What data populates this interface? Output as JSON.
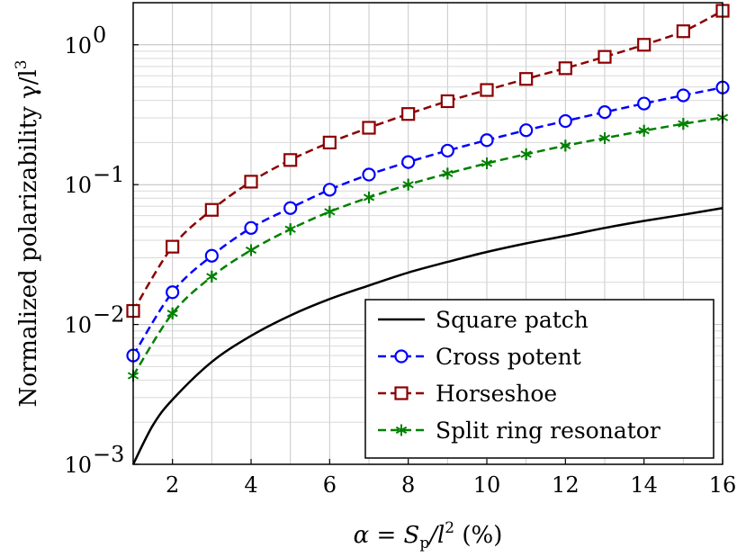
{
  "chart_data": {
    "type": "line",
    "xlabel": "α = S",
    "xlabel_sub": "p",
    "xlabel_rest": "/l",
    "xlabel_sup": "2",
    "xlabel_unit": " (%)",
    "ylabel": "Normalized polarizability γ/l",
    "ylabel_sup": "3",
    "xlim": [
      1,
      16
    ],
    "ylim": [
      0.001,
      2.0
    ],
    "y_scale": "log",
    "grid": true,
    "legend_position": "bottom-right",
    "x_ticks": [
      2,
      4,
      6,
      8,
      10,
      12,
      14,
      16
    ],
    "x_tick_labels": [
      "2",
      "4",
      "6",
      "8",
      "10",
      "12",
      "14",
      "16"
    ],
    "y_ticks": [
      0.001,
      0.01,
      0.1,
      1
    ],
    "y_tick_labels": [
      {
        "base": "10",
        "exp": "−3"
      },
      {
        "base": "10",
        "exp": "−2"
      },
      {
        "base": "10",
        "exp": "−1"
      },
      {
        "base": "10",
        "exp": "0"
      }
    ],
    "series": [
      {
        "name": "Square patch",
        "color": "#000000",
        "style": "solid",
        "marker": "none",
        "x": [
          1,
          1.5,
          2,
          3,
          4,
          5,
          6,
          7,
          8,
          9,
          10,
          11,
          12,
          13,
          14,
          15,
          16
        ],
        "y": [
          0.001,
          0.0019,
          0.0029,
          0.0054,
          0.0083,
          0.0116,
          0.0152,
          0.019,
          0.0235,
          0.028,
          0.033,
          0.038,
          0.043,
          0.049,
          0.055,
          0.061,
          0.068
        ]
      },
      {
        "name": "Cross potent",
        "color": "#0000ff",
        "style": "dashed",
        "marker": "circle",
        "x": [
          1,
          2,
          3,
          4,
          5,
          6,
          7,
          8,
          9,
          10,
          11,
          12,
          13,
          14,
          15,
          16
        ],
        "y": [
          0.006,
          0.017,
          0.031,
          0.049,
          0.068,
          0.092,
          0.118,
          0.145,
          0.175,
          0.208,
          0.245,
          0.285,
          0.33,
          0.38,
          0.435,
          0.495
        ]
      },
      {
        "name": "Horseshoe",
        "color": "#8b0000",
        "style": "dashed",
        "marker": "square",
        "x": [
          1,
          2,
          3,
          4,
          5,
          6,
          7,
          8,
          9,
          10,
          11,
          12,
          13,
          14,
          15,
          16
        ],
        "y": [
          0.0125,
          0.036,
          0.066,
          0.105,
          0.15,
          0.2,
          0.255,
          0.32,
          0.395,
          0.475,
          0.57,
          0.68,
          0.82,
          1.0,
          1.25,
          1.75
        ]
      },
      {
        "name": "Split ring resonator",
        "color": "#008000",
        "style": "dashed",
        "marker": "asterisk",
        "x": [
          1,
          2,
          3,
          4,
          5,
          6,
          7,
          8,
          9,
          10,
          11,
          12,
          13,
          14,
          15,
          16
        ],
        "y": [
          0.0043,
          0.012,
          0.022,
          0.034,
          0.048,
          0.064,
          0.081,
          0.1,
          0.12,
          0.142,
          0.165,
          0.19,
          0.215,
          0.243,
          0.272,
          0.302
        ]
      }
    ]
  }
}
